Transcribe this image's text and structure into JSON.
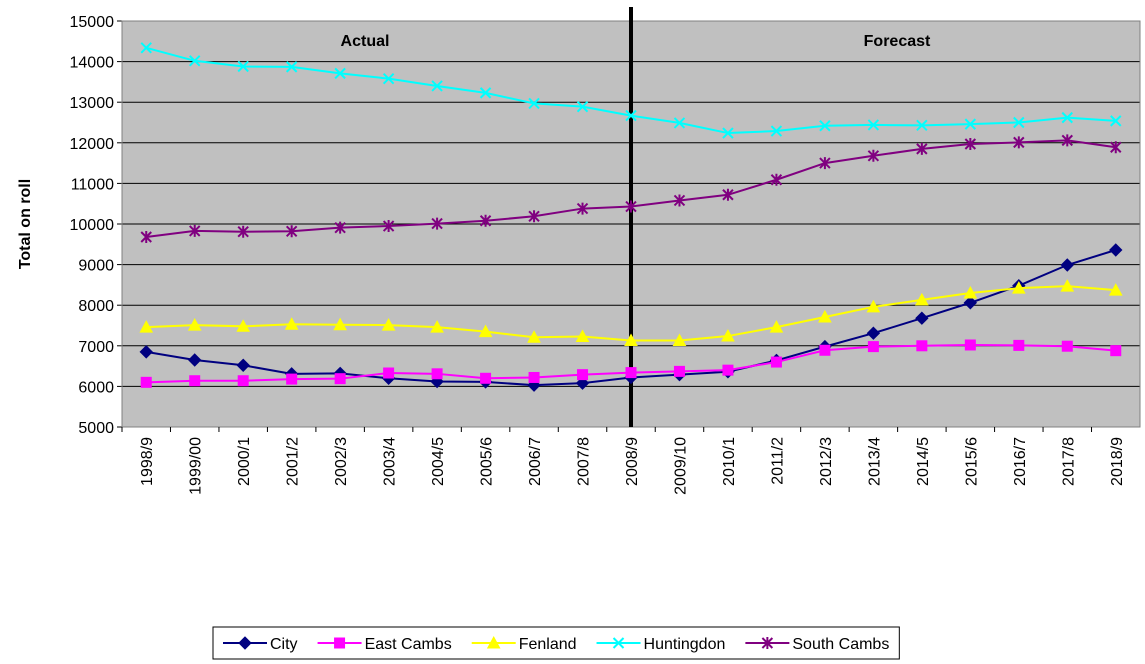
{
  "chart_data": {
    "type": "line",
    "y_label": "Total on roll",
    "annotations": [
      "Actual",
      "Forecast"
    ],
    "categories": [
      "1998/9",
      "1999/00",
      "2000/1",
      "2001/2",
      "2002/3",
      "2003/4",
      "2004/5",
      "2005/6",
      "2006/7",
      "2007/8",
      "2008/9",
      "2009/10",
      "2010/1",
      "2011/2",
      "2012/3",
      "2013/4",
      "2014/5",
      "2015/6",
      "2016/7",
      "2017/8",
      "2018/9"
    ],
    "series": [
      {
        "name": "City",
        "color": "#000080",
        "marker": "diamond",
        "values": [
          6850,
          6650,
          6520,
          6310,
          6320,
          6200,
          6120,
          6110,
          6030,
          6080,
          6220,
          6290,
          6360,
          6640,
          6980,
          7310,
          7680,
          8060,
          8480,
          8990,
          9360
        ]
      },
      {
        "name": "East Cambs",
        "color": "#FF00FF",
        "marker": "square",
        "values": [
          6100,
          6140,
          6140,
          6180,
          6190,
          6330,
          6310,
          6200,
          6220,
          6290,
          6340,
          6370,
          6400,
          6600,
          6890,
          6980,
          7000,
          7020,
          7010,
          6990,
          6880
        ]
      },
      {
        "name": "Fenland",
        "color": "#FFFF00",
        "marker": "triangle",
        "values": [
          7460,
          7510,
          7480,
          7530,
          7520,
          7510,
          7460,
          7350,
          7210,
          7230,
          7130,
          7130,
          7240,
          7460,
          7710,
          7960,
          8130,
          8300,
          8420,
          8470,
          8370
        ]
      },
      {
        "name": "Huntingdon",
        "color": "#00FFFF",
        "marker": "x",
        "values": [
          14340,
          14020,
          13880,
          13870,
          13710,
          13580,
          13400,
          13230,
          12970,
          12890,
          12670,
          12490,
          12240,
          12290,
          12420,
          12440,
          12430,
          12460,
          12500,
          12620,
          12540
        ]
      },
      {
        "name": "South Cambs",
        "color": "#800080",
        "marker": "star",
        "values": [
          9680,
          9830,
          9810,
          9820,
          9910,
          9950,
          10010,
          10080,
          10190,
          10380,
          10430,
          10580,
          10720,
          11090,
          11500,
          11680,
          11850,
          11970,
          12010,
          12060,
          11890
        ]
      }
    ],
    "ylim": [
      5000,
      15000
    ],
    "yticks": [
      5000,
      6000,
      7000,
      8000,
      9000,
      10000,
      11000,
      12000,
      13000,
      14000,
      15000
    ],
    "grid": true,
    "legend": "bottom"
  }
}
